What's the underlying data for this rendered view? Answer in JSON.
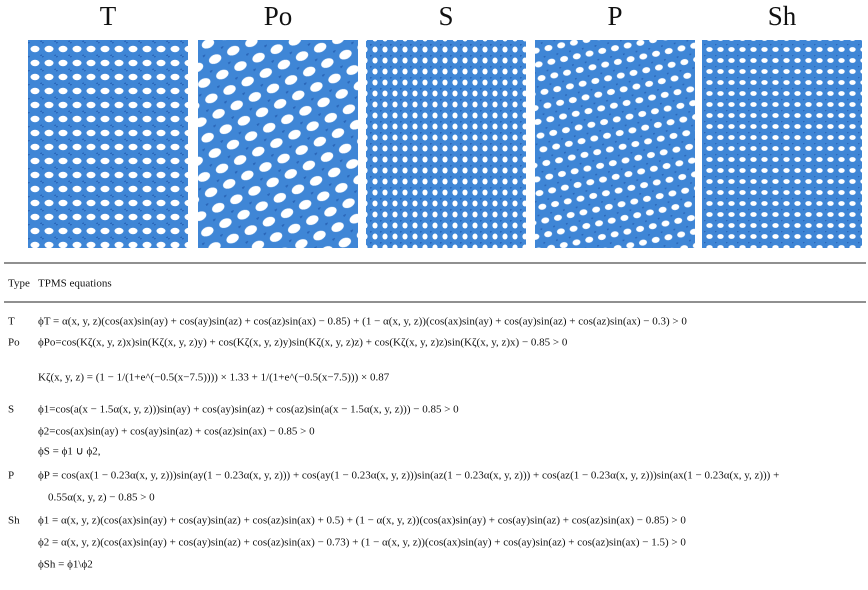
{
  "figure": {
    "labels": [
      "T",
      "Po",
      "S",
      "P",
      "Sh"
    ]
  },
  "table": {
    "header": [
      "Type",
      "TPMS equations"
    ],
    "rows": [
      {
        "type": "T",
        "equations": [
          "ϕT = α(x, y, z)(cos(ax)sin(ay) + cos(ay)sin(az) + cos(az)sin(ax) − 0.85) + (1 − α(x, y, z))(cos(ax)sin(ay) + cos(ay)sin(az) + cos(az)sin(ax) − 0.3) > 0"
        ]
      },
      {
        "type": "Po",
        "equations": [
          "ϕPo=cos(Kζ(x, y, z)x)sin(Kζ(x, y, z)y) + cos(Kζ(x, y, z)y)sin(Kζ(x, y, z)z) + cos(Kζ(x, y, z)z)sin(Kζ(x, y, z)x) − 0.85 > 0",
          "Kζ(x, y, z) = (1 − 1/(1+e^(−0.5(x−7.5)))) × 1.33 + 1/(1+e^(−0.5(x−7.5))) × 0.87"
        ]
      },
      {
        "type": "S",
        "equations": [
          "ϕ1=cos(a(x − 1.5α(x, y, z)))sin(ay) + cos(ay)sin(az) + cos(az)sin(a(x − 1.5α(x, y, z))) − 0.85 > 0",
          "ϕ2=cos(ax)sin(ay) + cos(ay)sin(az) + cos(az)sin(ax) − 0.85 > 0",
          "ϕS = ϕ1 ∪ ϕ2,"
        ]
      },
      {
        "type": "P",
        "equations": [
          "ϕP = cos(ax(1 − 0.23α(x, y, z)))sin(ay(1 − 0.23α(x, y, z))) + cos(ay(1 − 0.23α(x, y, z)))sin(az(1 − 0.23α(x, y, z))) + cos(az(1 − 0.23α(x, y, z)))sin(ax(1 − 0.23α(x, y, z))) +",
          "0.55α(x, y, z) − 0.85 > 0"
        ]
      },
      {
        "type": "Sh",
        "equations": [
          "ϕ1 = α(x, y, z)(cos(ax)sin(ay) + cos(ay)sin(az) + cos(az)sin(ax) + 0.5) + (1 − α(x, y, z))(cos(ax)sin(ay) + cos(ay)sin(az) + cos(az)sin(ax) − 0.85) > 0",
          "ϕ2 = α(x, y, z)(cos(ax)sin(ay) + cos(ay)sin(az) + cos(az)sin(ax) − 0.73) + (1 − α(x, y, z))(cos(ax)sin(ay) + cos(ay)sin(az) + cos(az)sin(ax) − 1.5) > 0",
          "ϕSh = ϕ1\\ϕ2"
        ]
      }
    ]
  }
}
